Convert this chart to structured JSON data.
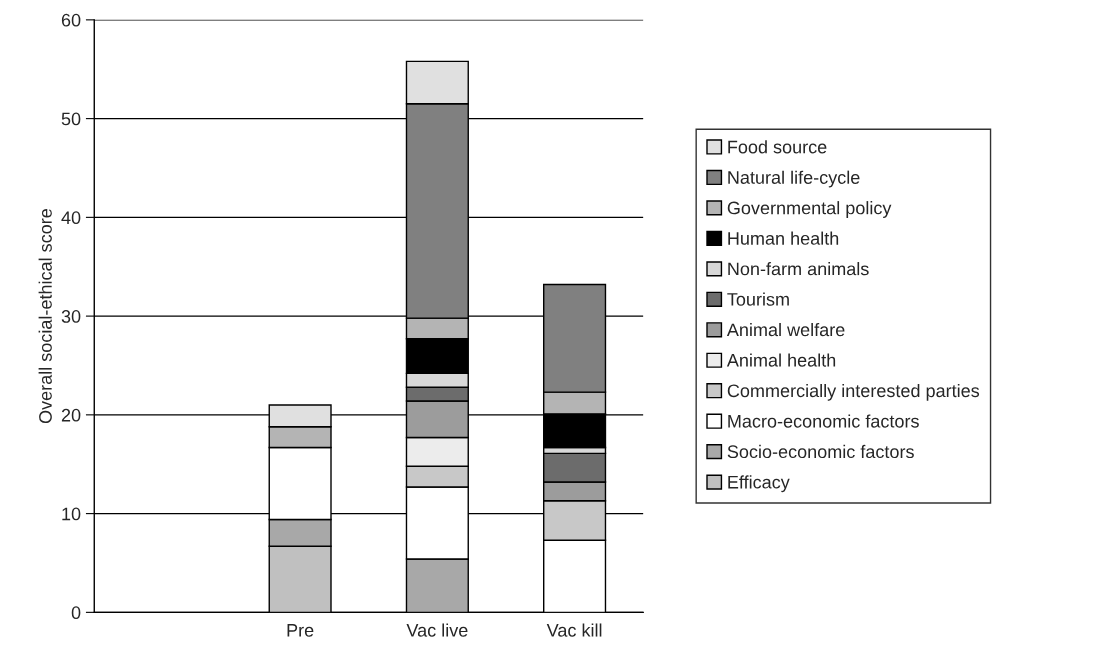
{
  "chart_data": {
    "type": "bar",
    "stacked": true,
    "ylabel": "Overall social-ethical score",
    "categories": [
      null,
      "Pre",
      "Vac live",
      "Vac kill"
    ],
    "ylim": [
      0,
      60
    ],
    "yticks": [
      0,
      10,
      20,
      30,
      40,
      50,
      60
    ],
    "grid": "y",
    "legend": "right",
    "series": [
      {
        "name": "Efficacy",
        "color": "#c0c0c0",
        "values": [
          null,
          6.7,
          null,
          null
        ]
      },
      {
        "name": "Socio-economic factors",
        "color": "#a8a8a8",
        "values": [
          null,
          2.7,
          5.4,
          null
        ]
      },
      {
        "name": "Macro-economic factors",
        "color": "#ffffff",
        "values": [
          null,
          7.3,
          7.3,
          7.3
        ]
      },
      {
        "name": "Commercially interested parties",
        "color": "#c8c8c8",
        "values": [
          null,
          null,
          2.1,
          4.0
        ]
      },
      {
        "name": "Animal health",
        "color": "#ececec",
        "values": [
          null,
          null,
          2.9,
          null
        ]
      },
      {
        "name": "Animal welfare",
        "color": "#9c9c9c",
        "values": [
          null,
          null,
          3.7,
          1.9
        ]
      },
      {
        "name": "Tourism",
        "color": "#6c6c6c",
        "values": [
          null,
          null,
          1.4,
          2.9
        ]
      },
      {
        "name": "Non-farm animals",
        "color": "#d8d8d8",
        "values": [
          null,
          null,
          1.4,
          0.6
        ]
      },
      {
        "name": "Human health",
        "color": "#000000",
        "values": [
          null,
          null,
          3.5,
          3.4
        ]
      },
      {
        "name": "Governmental policy",
        "color": "#b4b4b4",
        "values": [
          null,
          2.1,
          2.1,
          2.2
        ]
      },
      {
        "name": "Natural life-cycle",
        "color": "#808080",
        "values": [
          null,
          null,
          21.7,
          10.9
        ]
      },
      {
        "name": "Food source",
        "color": "#e0e0e0",
        "values": [
          null,
          2.2,
          4.3,
          null
        ]
      }
    ]
  }
}
